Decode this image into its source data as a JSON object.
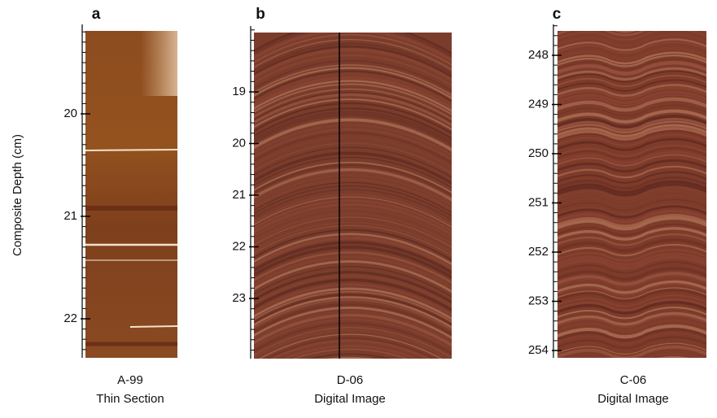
{
  "y_axis_title": "Composite Depth (cm)",
  "panels": [
    {
      "label": "a",
      "ticks": [
        20,
        21,
        22
      ],
      "caption": [
        "A-99",
        "Thin Section"
      ]
    },
    {
      "label": "b",
      "ticks": [
        19,
        20,
        21,
        22,
        23
      ],
      "caption": [
        "D-06",
        "Digital Image"
      ]
    },
    {
      "label": "c",
      "ticks": [
        248,
        249,
        250,
        251,
        252,
        253,
        254
      ],
      "caption": [
        "C-06",
        "Digital Image"
      ]
    }
  ]
}
